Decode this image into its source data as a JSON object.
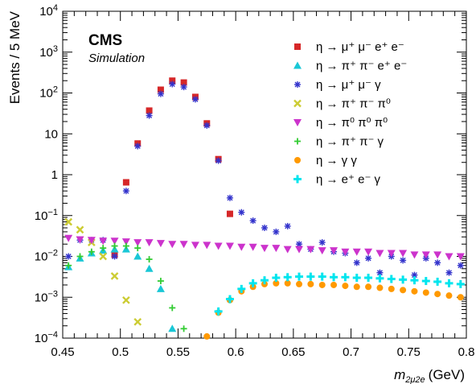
{
  "chart_data": {
    "type": "scatter",
    "ylabel": "Events / 5 MeV",
    "xlabel_main": "m",
    "xlabel_sub": "2μ2e",
    "xlabel_unit": "(GeV)",
    "xlim": [
      0.45,
      0.8
    ],
    "ylim": [
      0.0001,
      10000
    ],
    "ylog": true,
    "legend_position": "top-right",
    "annotation": {
      "experiment": "CMS",
      "label": "Simulation"
    },
    "x_ticks": [
      {
        "v": 0.45,
        "t": "0.45"
      },
      {
        "v": 0.5,
        "t": "0.5"
      },
      {
        "v": 0.55,
        "t": "0.55"
      },
      {
        "v": 0.6,
        "t": "0.6"
      },
      {
        "v": 0.65,
        "t": "0.65"
      },
      {
        "v": 0.7,
        "t": "0.7"
      },
      {
        "v": 0.75,
        "t": "0.75"
      },
      {
        "v": 0.8,
        "t": "0.8"
      }
    ],
    "y_ticks": [
      {
        "v": 0.0001,
        "base": "10",
        "exp": "−4"
      },
      {
        "v": 0.001,
        "base": "10",
        "exp": "−3"
      },
      {
        "v": 0.01,
        "base": "10",
        "exp": "−2"
      },
      {
        "v": 0.1,
        "base": "10",
        "exp": "−1"
      },
      {
        "v": 1,
        "base": "1",
        "exp": ""
      },
      {
        "v": 10,
        "base": "10",
        "exp": ""
      },
      {
        "v": 100,
        "base": "10",
        "exp": "2"
      },
      {
        "v": 1000,
        "base": "10",
        "exp": "3"
      },
      {
        "v": 10000,
        "base": "10",
        "exp": "4"
      }
    ],
    "series": [
      {
        "name": "η → μ⁺ μ⁻ e⁺ e⁻",
        "color": "#d62728",
        "marker": "square",
        "points": [
          [
            0.495,
            0.011
          ],
          [
            0.505,
            0.65
          ],
          [
            0.515,
            5.8
          ],
          [
            0.525,
            37
          ],
          [
            0.535,
            120
          ],
          [
            0.545,
            200
          ],
          [
            0.555,
            180
          ],
          [
            0.565,
            80
          ],
          [
            0.575,
            18
          ],
          [
            0.585,
            2.4
          ],
          [
            0.595,
            0.11
          ]
        ]
      },
      {
        "name": "η → π⁺ π⁻ e⁺ e⁻",
        "color": "#19c7d6",
        "marker": "triangle-up",
        "points": [
          [
            0.455,
            0.0055
          ],
          [
            0.465,
            0.009
          ],
          [
            0.475,
            0.012
          ],
          [
            0.485,
            0.014
          ],
          [
            0.495,
            0.015
          ],
          [
            0.505,
            0.015
          ],
          [
            0.515,
            0.01
          ],
          [
            0.525,
            0.005
          ],
          [
            0.535,
            0.0016
          ],
          [
            0.545,
            0.00017
          ]
        ]
      },
      {
        "name": "η → μ⁺ μ⁻ γ",
        "color": "#3333cc",
        "marker": "star",
        "points": [
          [
            0.455,
            0.01
          ],
          [
            0.465,
            0.025
          ],
          [
            0.475,
            0.025
          ],
          [
            0.485,
            0.025
          ],
          [
            0.495,
            0.01
          ],
          [
            0.505,
            0.4
          ],
          [
            0.515,
            5
          ],
          [
            0.525,
            28
          ],
          [
            0.535,
            95
          ],
          [
            0.545,
            165
          ],
          [
            0.555,
            140
          ],
          [
            0.565,
            70
          ],
          [
            0.575,
            16
          ],
          [
            0.585,
            2.2
          ],
          [
            0.595,
            0.27
          ],
          [
            0.605,
            0.12
          ],
          [
            0.615,
            0.075
          ],
          [
            0.625,
            0.05
          ],
          [
            0.635,
            0.04
          ],
          [
            0.645,
            0.055
          ],
          [
            0.655,
            0.02
          ],
          [
            0.665,
            0.015
          ],
          [
            0.675,
            0.022
          ],
          [
            0.685,
            0.013
          ],
          [
            0.695,
            0.012
          ],
          [
            0.705,
            0.007
          ],
          [
            0.715,
            0.009
          ],
          [
            0.725,
            0.004
          ],
          [
            0.735,
            0.01
          ],
          [
            0.745,
            0.008
          ],
          [
            0.755,
            0.0035
          ],
          [
            0.765,
            0.009
          ],
          [
            0.775,
            0.007
          ],
          [
            0.785,
            0.004
          ],
          [
            0.795,
            0.006
          ]
        ]
      },
      {
        "name": "η → π⁺ π⁻ π⁰",
        "color": "#cccc33",
        "marker": "x",
        "points": [
          [
            0.455,
            0.07
          ],
          [
            0.465,
            0.045
          ],
          [
            0.475,
            0.022
          ],
          [
            0.485,
            0.01
          ],
          [
            0.495,
            0.0033
          ],
          [
            0.505,
            0.00085
          ],
          [
            0.515,
            0.00025
          ]
        ]
      },
      {
        "name": "η → π⁰ π⁰ π⁰",
        "color": "#cc33cc",
        "marker": "triangle-down",
        "points": [
          [
            0.455,
            0.028
          ],
          [
            0.465,
            0.026
          ],
          [
            0.475,
            0.025
          ],
          [
            0.485,
            0.024
          ],
          [
            0.495,
            0.024
          ],
          [
            0.505,
            0.023
          ],
          [
            0.515,
            0.022
          ],
          [
            0.525,
            0.022
          ],
          [
            0.535,
            0.021
          ],
          [
            0.545,
            0.02
          ],
          [
            0.555,
            0.02
          ],
          [
            0.565,
            0.019
          ],
          [
            0.575,
            0.019
          ],
          [
            0.585,
            0.018
          ],
          [
            0.595,
            0.018
          ],
          [
            0.605,
            0.017
          ],
          [
            0.615,
            0.017
          ],
          [
            0.625,
            0.016
          ],
          [
            0.635,
            0.016
          ],
          [
            0.645,
            0.015
          ],
          [
            0.655,
            0.015
          ],
          [
            0.665,
            0.015
          ],
          [
            0.675,
            0.014
          ],
          [
            0.685,
            0.014
          ],
          [
            0.695,
            0.013
          ],
          [
            0.705,
            0.013
          ],
          [
            0.715,
            0.013
          ],
          [
            0.725,
            0.012
          ],
          [
            0.735,
            0.012
          ],
          [
            0.745,
            0.012
          ],
          [
            0.755,
            0.011
          ],
          [
            0.765,
            0.011
          ],
          [
            0.775,
            0.011
          ],
          [
            0.785,
            0.01
          ],
          [
            0.795,
            0.01
          ]
        ]
      },
      {
        "name": "η → π⁺ π⁻ γ",
        "color": "#33cc33",
        "marker": "plus",
        "points": [
          [
            0.455,
            0.006
          ],
          [
            0.465,
            0.01
          ],
          [
            0.475,
            0.013
          ],
          [
            0.485,
            0.016
          ],
          [
            0.495,
            0.018
          ],
          [
            0.505,
            0.018
          ],
          [
            0.515,
            0.016
          ],
          [
            0.525,
            0.0085
          ],
          [
            0.535,
            0.0025
          ],
          [
            0.545,
            0.00055
          ],
          [
            0.555,
            0.00017
          ]
        ]
      },
      {
        "name": "η → γ γ",
        "color": "#ff9900",
        "marker": "circle",
        "points": [
          [
            0.575,
            0.00011
          ],
          [
            0.585,
            0.00042
          ],
          [
            0.595,
            0.00085
          ],
          [
            0.605,
            0.0014
          ],
          [
            0.615,
            0.0018
          ],
          [
            0.625,
            0.0021
          ],
          [
            0.635,
            0.0022
          ],
          [
            0.645,
            0.0022
          ],
          [
            0.655,
            0.0021
          ],
          [
            0.665,
            0.0021
          ],
          [
            0.675,
            0.002
          ],
          [
            0.685,
            0.002
          ],
          [
            0.695,
            0.0019
          ],
          [
            0.705,
            0.0018
          ],
          [
            0.715,
            0.0018
          ],
          [
            0.725,
            0.0017
          ],
          [
            0.735,
            0.0016
          ],
          [
            0.745,
            0.0015
          ],
          [
            0.755,
            0.0014
          ],
          [
            0.765,
            0.0013
          ],
          [
            0.775,
            0.0012
          ],
          [
            0.785,
            0.0011
          ],
          [
            0.795,
            0.001
          ]
        ]
      },
      {
        "name": "η → e⁺ e⁻ γ",
        "color": "#00e5ee",
        "marker": "cross",
        "points": [
          [
            0.585,
            0.00045
          ],
          [
            0.595,
            0.0009
          ],
          [
            0.605,
            0.0016
          ],
          [
            0.615,
            0.0022
          ],
          [
            0.625,
            0.0026
          ],
          [
            0.635,
            0.003
          ],
          [
            0.645,
            0.0031
          ],
          [
            0.655,
            0.0032
          ],
          [
            0.665,
            0.0032
          ],
          [
            0.675,
            0.0032
          ],
          [
            0.685,
            0.0031
          ],
          [
            0.695,
            0.0031
          ],
          [
            0.705,
            0.003
          ],
          [
            0.715,
            0.003
          ],
          [
            0.725,
            0.0029
          ],
          [
            0.735,
            0.0028
          ],
          [
            0.745,
            0.0027
          ],
          [
            0.755,
            0.0026
          ],
          [
            0.765,
            0.0025
          ],
          [
            0.775,
            0.0024
          ],
          [
            0.785,
            0.0022
          ],
          [
            0.795,
            0.0021
          ]
        ]
      }
    ]
  }
}
